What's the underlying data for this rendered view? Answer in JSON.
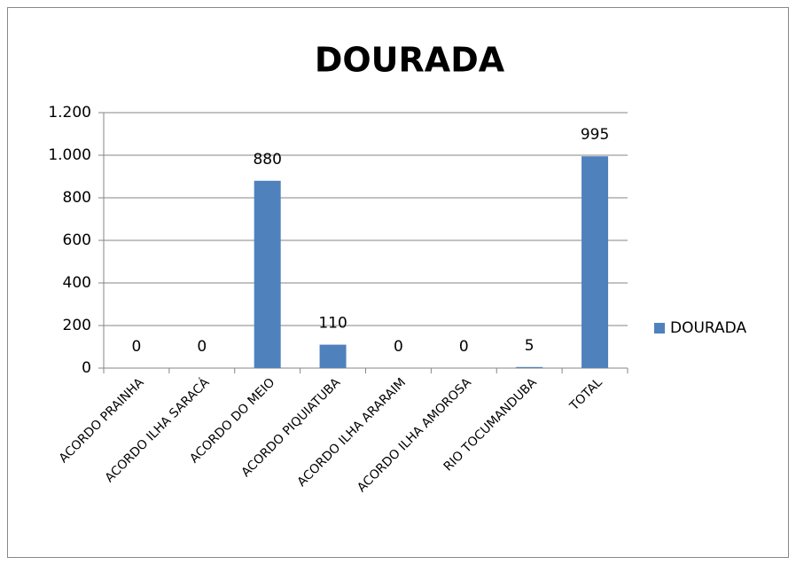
{
  "chart_data": {
    "type": "bar",
    "title": "DOURADA",
    "categories": [
      "ACORDO PRAINHA",
      "ACORDO ILHA SARACÁ",
      "ACORDO DO MEIO",
      "ACORDO PIQUIATUBA",
      "ACORDO ILHA ARARAIM",
      "ACORDO ILHA AMOROSA",
      "RIO TOCUMANDUBA",
      "TOTAL"
    ],
    "series": [
      {
        "name": "DOURADA",
        "color": "#4f81bd",
        "values": [
          0,
          0,
          880,
          110,
          0,
          0,
          5,
          995
        ]
      }
    ],
    "ylim": [
      0,
      1200
    ],
    "yticks": [
      0,
      200,
      400,
      600,
      800,
      {
        "value": 1000,
        "label": "1.000"
      },
      {
        "value": 1200,
        "label": "1.200"
      }
    ],
    "grid": true,
    "legend": "right"
  }
}
